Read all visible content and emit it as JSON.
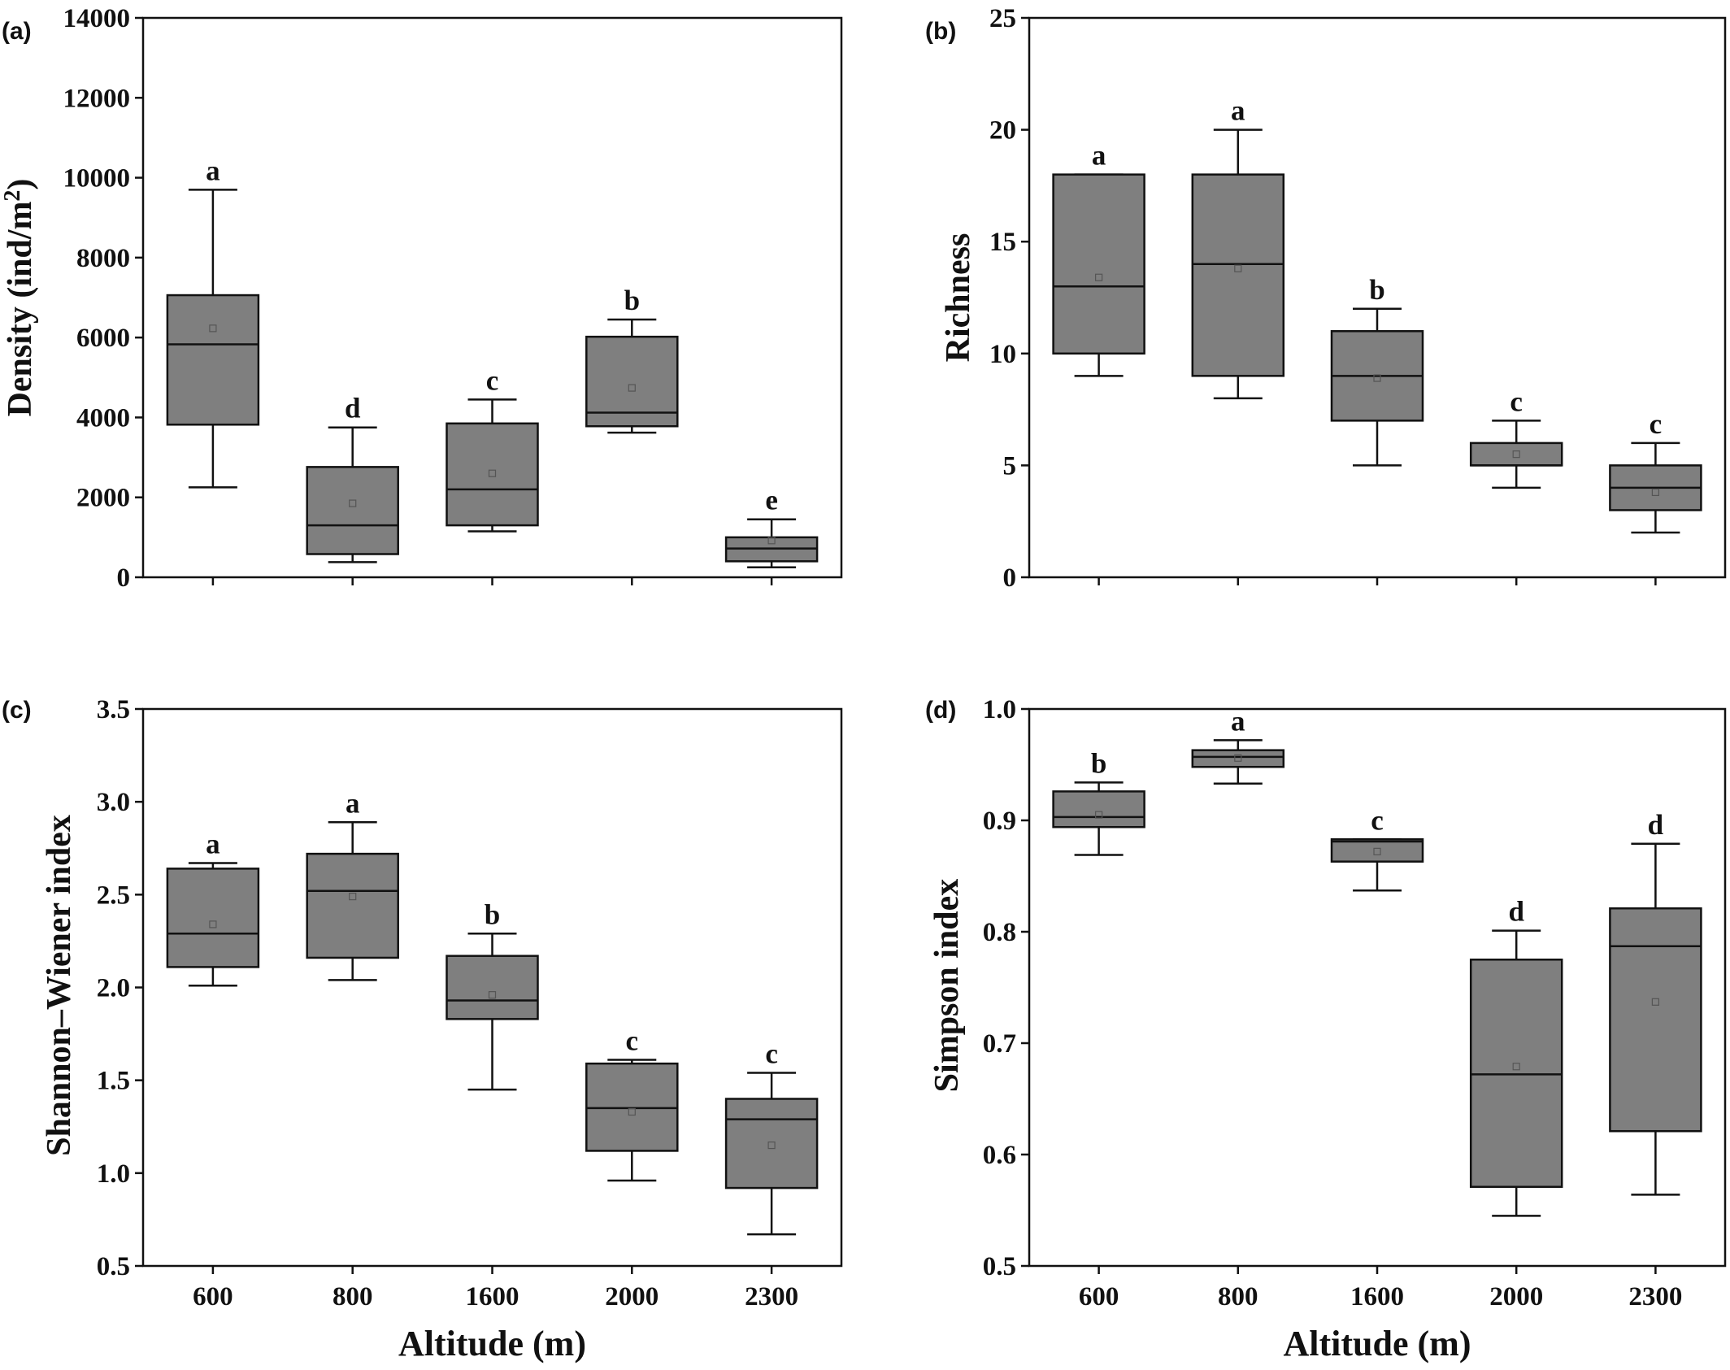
{
  "figure": {
    "box_fill": "#7f7f7f",
    "line_color": "#111111"
  },
  "chart_data": [
    {
      "type": "box",
      "panel_label": "(a)",
      "ylabel": "Density  (ind/m",
      "ylabel_sup": "2",
      "ylabel_tail": ")",
      "xlabel": "",
      "ylim": [
        0,
        14000
      ],
      "yticks": [
        0,
        2000,
        4000,
        6000,
        8000,
        10000,
        12000,
        14000
      ],
      "ytick_labels": [
        "0",
        "2000",
        "4000",
        "6000",
        "8000",
        "10000",
        "12000",
        "14000"
      ],
      "categories": [
        "600",
        "800",
        "1600",
        "2000",
        "2300"
      ],
      "show_xtick_labels": false,
      "boxes": [
        {
          "whisker_low": 2250,
          "q1": 3820,
          "median": 5830,
          "q3": 7060,
          "whisker_high": 9700,
          "mean": 6230,
          "letter": "a"
        },
        {
          "whisker_low": 380,
          "q1": 580,
          "median": 1300,
          "q3": 2760,
          "whisker_high": 3750,
          "mean": 1850,
          "letter": "d"
        },
        {
          "whisker_low": 1150,
          "q1": 1300,
          "median": 2200,
          "q3": 3850,
          "whisker_high": 4450,
          "mean": 2600,
          "letter": "c"
        },
        {
          "whisker_low": 3620,
          "q1": 3780,
          "median": 4120,
          "q3": 6020,
          "whisker_high": 6450,
          "mean": 4740,
          "letter": "b"
        },
        {
          "whisker_low": 250,
          "q1": 400,
          "median": 720,
          "q3": 1000,
          "whisker_high": 1450,
          "mean": 920,
          "letter": "e"
        }
      ]
    },
    {
      "type": "box",
      "panel_label": "(b)",
      "ylabel": "Richness",
      "xlabel": "",
      "ylim": [
        0,
        25
      ],
      "yticks": [
        0,
        5,
        10,
        15,
        20,
        25
      ],
      "ytick_labels": [
        "0",
        "5",
        "10",
        "15",
        "20",
        "25"
      ],
      "categories": [
        "600",
        "800",
        "1600",
        "2000",
        "2300"
      ],
      "show_xtick_labels": false,
      "boxes": [
        {
          "whisker_low": 9,
          "q1": 10,
          "median": 13,
          "q3": 18,
          "whisker_high": 18,
          "mean": 13.4,
          "letter": "a"
        },
        {
          "whisker_low": 8,
          "q1": 9,
          "median": 14,
          "q3": 18,
          "whisker_high": 20,
          "mean": 13.8,
          "letter": "a"
        },
        {
          "whisker_low": 5,
          "q1": 7,
          "median": 9,
          "q3": 11,
          "whisker_high": 12,
          "mean": 8.9,
          "letter": "b"
        },
        {
          "whisker_low": 4,
          "q1": 5,
          "median": 5,
          "q3": 6,
          "whisker_high": 7,
          "mean": 5.5,
          "letter": "c"
        },
        {
          "whisker_low": 2,
          "q1": 3,
          "median": 4,
          "q3": 5,
          "whisker_high": 6,
          "mean": 3.8,
          "letter": "c"
        }
      ]
    },
    {
      "type": "box",
      "panel_label": "(c)",
      "ylabel": "Shannon–Wiener index",
      "xlabel": "Altitude (m)",
      "ylim": [
        0.5,
        3.5
      ],
      "yticks": [
        0.5,
        1.0,
        1.5,
        2.0,
        2.5,
        3.0,
        3.5
      ],
      "ytick_labels": [
        "0.5",
        "1.0",
        "1.5",
        "2.0",
        "2.5",
        "3.0",
        "3.5"
      ],
      "categories": [
        "600",
        "800",
        "1600",
        "2000",
        "2300"
      ],
      "show_xtick_labels": true,
      "boxes": [
        {
          "whisker_low": 2.01,
          "q1": 2.11,
          "median": 2.29,
          "q3": 2.64,
          "whisker_high": 2.67,
          "mean": 2.34,
          "letter": "a"
        },
        {
          "whisker_low": 2.04,
          "q1": 2.16,
          "median": 2.52,
          "q3": 2.72,
          "whisker_high": 2.89,
          "mean": 2.49,
          "letter": "a"
        },
        {
          "whisker_low": 1.45,
          "q1": 1.83,
          "median": 1.93,
          "q3": 2.17,
          "whisker_high": 2.29,
          "mean": 1.96,
          "letter": "b"
        },
        {
          "whisker_low": 0.96,
          "q1": 1.12,
          "median": 1.35,
          "q3": 1.59,
          "whisker_high": 1.61,
          "mean": 1.33,
          "letter": "c"
        },
        {
          "whisker_low": 0.67,
          "q1": 0.92,
          "median": 1.29,
          "q3": 1.4,
          "whisker_high": 1.54,
          "mean": 1.15,
          "letter": "c"
        }
      ]
    },
    {
      "type": "box",
      "panel_label": "(d)",
      "ylabel": "Simpson index",
      "xlabel": "Altitude (m)",
      "ylim": [
        0.5,
        1.0
      ],
      "yticks": [
        0.5,
        0.6,
        0.7,
        0.8,
        0.9,
        1.0
      ],
      "ytick_labels": [
        "0.5",
        "0.6",
        "0.7",
        "0.8",
        "0.9",
        "1.0"
      ],
      "categories": [
        "600",
        "800",
        "1600",
        "2000",
        "2300"
      ],
      "show_xtick_labels": true,
      "boxes": [
        {
          "whisker_low": 0.869,
          "q1": 0.894,
          "median": 0.903,
          "q3": 0.926,
          "whisker_high": 0.934,
          "mean": 0.905,
          "letter": "b"
        },
        {
          "whisker_low": 0.933,
          "q1": 0.948,
          "median": 0.957,
          "q3": 0.963,
          "whisker_high": 0.972,
          "mean": 0.956,
          "letter": "a"
        },
        {
          "whisker_low": 0.837,
          "q1": 0.863,
          "median": 0.881,
          "q3": 0.883,
          "whisker_high": 0.883,
          "mean": 0.872,
          "letter": "c"
        },
        {
          "whisker_low": 0.545,
          "q1": 0.571,
          "median": 0.672,
          "q3": 0.775,
          "whisker_high": 0.801,
          "mean": 0.679,
          "letter": "d"
        },
        {
          "whisker_low": 0.564,
          "q1": 0.621,
          "median": 0.787,
          "q3": 0.821,
          "whisker_high": 0.879,
          "mean": 0.737,
          "letter": "d"
        }
      ]
    }
  ]
}
